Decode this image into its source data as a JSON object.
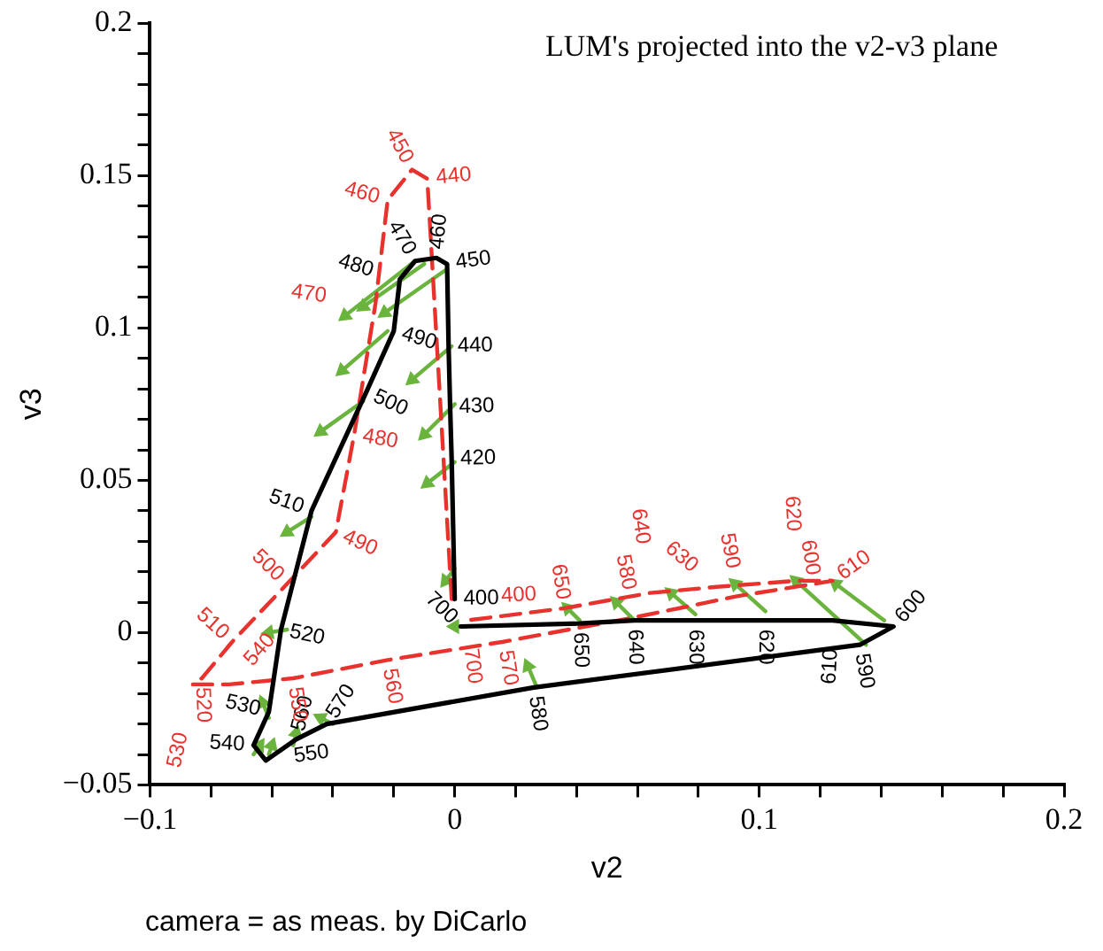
{
  "chart_data": {
    "type": "line",
    "title": "LUM's projected into the v2-v3 plane",
    "xlabel": "v2",
    "ylabel": "v3",
    "annotations": [
      "camera = as meas. by DiCarlo",
      {
        "text": "400",
        "x": 0,
        "y": 0.011
      },
      {
        "text": "420",
        "x": -0.001,
        "y": 0.057
      },
      {
        "text": "430",
        "x": -0.0015,
        "y": 0.074
      },
      {
        "text": "440",
        "x": -0.002,
        "y": 0.094
      },
      {
        "text": "450",
        "x": -0.0025,
        "y": 0.121
      },
      {
        "text": "460",
        "x": -0.006,
        "y": 0.123
      },
      {
        "text": "470",
        "x": -0.013,
        "y": 0.122
      },
      {
        "text": "480",
        "x": -0.018,
        "y": 0.116
      },
      {
        "text": "490",
        "x": -0.02,
        "y": 0.099
      },
      {
        "text": "500",
        "x": -0.029,
        "y": 0.079
      },
      {
        "text": "510",
        "x": -0.047,
        "y": 0.04
      },
      {
        "text": "520",
        "x": -0.057,
        "y": 0.001
      },
      {
        "text": "530",
        "x": -0.061,
        "y": -0.026
      },
      {
        "text": "540",
        "x": -0.066,
        "y": -0.037
      },
      {
        "text": "550",
        "x": -0.062,
        "y": -0.042
      },
      {
        "text": "560",
        "x": -0.052,
        "y": -0.035
      },
      {
        "text": "570",
        "x": -0.042,
        "y": -0.03
      },
      {
        "text": "580",
        "x": 0.026,
        "y": -0.018
      },
      {
        "text": "590",
        "x": 0.133,
        "y": -0.004
      },
      {
        "text": "600",
        "x": 0.144,
        "y": 0.002
      },
      {
        "text": "610",
        "x": 0.124,
        "y": 0.004
      },
      {
        "text": "620",
        "x": 0.102,
        "y": 0.004
      },
      {
        "text": "630",
        "x": 0.079,
        "y": 0.004
      },
      {
        "text": "640",
        "x": 0.059,
        "y": 0.004
      },
      {
        "text": "650",
        "x": 0.041,
        "y": 0.003
      },
      {
        "text": "700",
        "x": 0.002,
        "y": 0.002
      },
      {
        "text": "400",
        "x": -0.001,
        "y": 0.011
      },
      {
        "text": "440",
        "x": -0.009,
        "y": 0.149
      },
      {
        "text": "450",
        "x": -0.014,
        "y": 0.152
      },
      {
        "text": "460",
        "x": -0.022,
        "y": 0.142
      },
      {
        "text": "470",
        "x": -0.026,
        "y": 0.108
      },
      {
        "text": "480",
        "x": -0.033,
        "y": 0.065
      },
      {
        "text": "490",
        "x": -0.039,
        "y": 0.033
      },
      {
        "text": "500",
        "x": -0.055,
        "y": 0.016
      },
      {
        "text": "510",
        "x": -0.073,
        "y": -0.003
      },
      {
        "text": "520",
        "x": -0.083,
        "y": -0.015
      },
      {
        "text": "530",
        "x": -0.086,
        "y": -0.017
      },
      {
        "text": "540",
        "x": -0.074,
        "y": -0.017
      },
      {
        "text": "550",
        "x": -0.053,
        "y": -0.015
      },
      {
        "text": "560",
        "x": -0.022,
        "y": -0.009
      },
      {
        "text": "570",
        "x": 0.016,
        "y": -0.003
      },
      {
        "text": "580",
        "x": 0.059,
        "y": 0.005
      },
      {
        "text": "590",
        "x": 0.093,
        "y": 0.012
      },
      {
        "text": "600",
        "x": 0.118,
        "y": 0.016
      },
      {
        "text": "610",
        "x": 0.124,
        "y": 0.017
      },
      {
        "text": "620",
        "x": 0.112,
        "y": 0.017
      },
      {
        "text": "630",
        "x": 0.086,
        "y": 0.015
      },
      {
        "text": "640",
        "x": 0.064,
        "y": 0.013
      },
      {
        "text": "650",
        "x": 0.036,
        "y": 0.008
      },
      {
        "text": "700",
        "x": 0.004,
        "y": 0.004
      }
    ],
    "xlim": [
      -0.1,
      0.2
    ],
    "ylim": [
      -0.05,
      0.2
    ],
    "xticks": [
      -0.1,
      {
        "value": -0.08,
        "label": null
      },
      {
        "value": -0.06,
        "label": null
      },
      {
        "value": -0.04,
        "label": null
      },
      {
        "value": -0.02,
        "label": null
      },
      0,
      {
        "value": 0.02,
        "label": null
      },
      {
        "value": 0.04,
        "label": null
      },
      {
        "value": 0.06,
        "label": null
      },
      {
        "value": 0.08,
        "label": null
      },
      0.1,
      {
        "value": 0.12,
        "label": null
      },
      {
        "value": 0.14,
        "label": null
      },
      {
        "value": 0.16,
        "label": null
      },
      {
        "value": 0.18,
        "label": null
      },
      0.2
    ],
    "yticks": [
      -0.05,
      {
        "value": -0.04,
        "label": null
      },
      {
        "value": -0.03,
        "label": null
      },
      {
        "value": -0.02,
        "label": null
      },
      {
        "value": -0.01,
        "label": null
      },
      0,
      {
        "value": 0.01,
        "label": null
      },
      {
        "value": 0.02,
        "label": null
      },
      {
        "value": 0.03,
        "label": null
      },
      {
        "value": 0.04,
        "label": null
      },
      0.05,
      {
        "value": 0.06,
        "label": null
      },
      {
        "value": 0.07,
        "label": null
      },
      {
        "value": 0.08,
        "label": null
      },
      {
        "value": 0.09,
        "label": null
      },
      0.1,
      {
        "value": 0.11,
        "label": null
      },
      {
        "value": 0.12,
        "label": null
      },
      {
        "value": 0.13,
        "label": null
      },
      {
        "value": 0.14,
        "label": null
      },
      0.15,
      {
        "value": 0.16,
        "label": null
      },
      {
        "value": 0.17,
        "label": null
      },
      {
        "value": 0.18,
        "label": null
      },
      {
        "value": 0.19,
        "label": null
      },
      0.2
    ],
    "grid": false,
    "legend": false,
    "marker": "none",
    "line_style": "solid",
    "series": [
      {
        "color": "#000000",
        "x": [
          0,
          -0.001,
          -0.0015,
          -0.002,
          -0.0025,
          -0.006,
          -0.013,
          -0.018,
          -0.02,
          -0.029,
          -0.047,
          -0.057,
          -0.061,
          -0.066,
          -0.062,
          -0.052,
          -0.042,
          0.026,
          0.133,
          0.144,
          0.124,
          0.102,
          0.079,
          0.059,
          0.041,
          0.002
        ],
        "values": [
          0.011,
          0.057,
          0.074,
          0.094,
          0.121,
          0.123,
          0.122,
          0.116,
          0.099,
          0.079,
          0.04,
          0.001,
          -0.026,
          -0.037,
          -0.042,
          -0.035,
          -0.03,
          -0.018,
          -0.004,
          0.002,
          0.004,
          0.004,
          0.004,
          0.004,
          0.003,
          0.002
        ]
      },
      {
        "color": "#e8322d",
        "line_style": "dashed",
        "x": [
          -0.001,
          -0.009,
          -0.014,
          -0.022,
          -0.026,
          -0.033,
          -0.039,
          -0.055,
          -0.073,
          -0.083,
          -0.086,
          -0.074,
          -0.053,
          -0.022,
          0.016,
          0.059,
          0.093,
          0.118,
          0.124,
          0.112,
          0.086,
          0.064,
          0.036,
          0.004
        ],
        "values": [
          0.011,
          0.149,
          0.152,
          0.142,
          0.108,
          0.065,
          0.033,
          0.016,
          -0.003,
          -0.015,
          -0.017,
          -0.017,
          -0.015,
          -0.009,
          -0.003,
          0.005,
          0.012,
          0.016,
          0.017,
          0.017,
          0.015,
          0.013,
          0.008,
          0.004
        ]
      },
      {
        "color": "#6ab43e",
        "marker": "triangle",
        "x": [
          -0.013,
          -0.036,
          null,
          -0.003,
          -0.023,
          null,
          -0.01,
          -0.03,
          null,
          -0.022,
          -0.037,
          null,
          -0.001,
          -0.014,
          null,
          -0.03,
          -0.044,
          null,
          0,
          -0.01,
          null,
          0,
          -0.009,
          null,
          -0.047,
          -0.055,
          null,
          0,
          -0.003,
          null,
          -0.055,
          -0.061,
          null,
          -0.061,
          -0.063,
          null,
          -0.066,
          -0.064,
          null,
          -0.061,
          -0.06,
          null,
          -0.053,
          -0.052,
          null,
          -0.04,
          -0.044,
          null,
          0.004,
          0,
          null,
          0.027,
          0.024,
          null,
          0.041,
          0.037,
          null,
          0.059,
          0.053,
          null,
          0.079,
          0.071,
          null,
          0.102,
          0.092,
          null,
          0.135,
          0.112,
          null,
          0.141,
          0.125
        ],
        "values": [
          0.122,
          0.104,
          null,
          0.119,
          0.105,
          null,
          0.121,
          0.107,
          null,
          0.099,
          0.086,
          null,
          0.094,
          0.083,
          null,
          0.076,
          0.066,
          null,
          0.075,
          0.065,
          null,
          0.056,
          0.049,
          null,
          0.038,
          0.033,
          null,
          0.021,
          0.017,
          null,
          0.001,
          0,
          null,
          -0.028,
          -0.023,
          null,
          -0.04,
          -0.037,
          null,
          -0.04,
          -0.037,
          null,
          -0.037,
          -0.033,
          null,
          -0.03,
          -0.028,
          null,
          0.002,
          0.002,
          null,
          -0.018,
          -0.011,
          null,
          0.004,
          0.008,
          null,
          0.004,
          0.01,
          null,
          0.006,
          0.013,
          null,
          0.007,
          0.016,
          null,
          -0.004,
          0.017,
          null,
          0.004,
          0.016
        ]
      }
    ]
  }
}
